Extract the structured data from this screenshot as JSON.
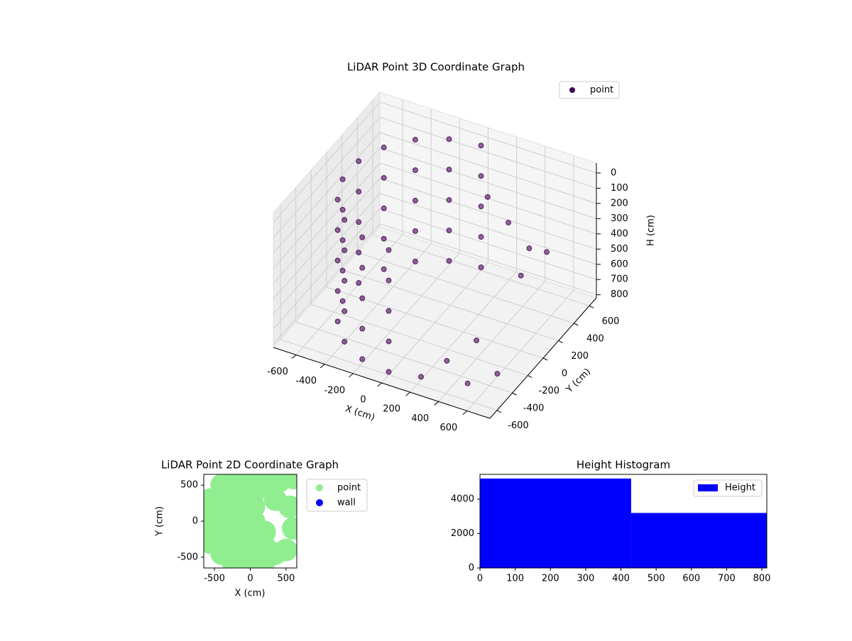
{
  "chart_data": [
    {
      "type": "scatter3d",
      "title": "LiDAR Point 3D Coordinate Graph",
      "x_label": "X (cm)",
      "y_label": "Y (cm)",
      "z_label": "H (cm)",
      "xlim": [
        -760,
        760
      ],
      "ylim": [
        -692,
        692
      ],
      "zlim": [
        820,
        -65
      ],
      "xticks": [
        -600,
        -400,
        -200,
        0,
        200,
        400,
        600
      ],
      "yticks": [
        -600,
        -400,
        -200,
        0,
        200,
        400,
        600
      ],
      "zticks": [
        0,
        100,
        200,
        300,
        400,
        500,
        600,
        700,
        800
      ],
      "legend": "upper right",
      "grid": true,
      "series": [
        {
          "name": "point",
          "color": "#440154",
          "x": [
            0,
            -205,
            -386,
            -520,
            -591,
            -591,
            -520,
            -386,
            -205,
            0,
            0,
            -205,
            -386,
            -520,
            -591,
            -591,
            -520,
            -386,
            -205,
            0,
            0,
            -205,
            -386,
            -520,
            -591,
            -591,
            -520,
            -386,
            -205,
            0,
            0,
            -205,
            -386,
            -520,
            -591,
            -591,
            -520,
            -386,
            -205,
            0,
            0,
            -205,
            -386,
            -520,
            -591,
            -591,
            -520,
            -386,
            -205,
            0,
            100,
            300,
            500,
            550,
            400,
            300,
            600,
            200,
            650,
            500
          ],
          "y": [
            600,
            564,
            460,
            300,
            104,
            -104,
            -300,
            -460,
            -564,
            -600,
            600,
            564,
            460,
            300,
            104,
            -104,
            -300,
            -460,
            -564,
            -600,
            600,
            564,
            460,
            300,
            104,
            -104,
            -300,
            -460,
            -564,
            -600,
            600,
            564,
            460,
            300,
            104,
            -104,
            -300,
            -460,
            -564,
            -600,
            600,
            564,
            460,
            300,
            104,
            -104,
            -300,
            -460,
            -564,
            -600,
            500,
            400,
            300,
            100,
            -200,
            -400,
            -300,
            -550,
            250,
            -500
          ],
          "z": [
            0,
            0,
            0,
            0,
            0,
            0,
            0,
            0,
            0,
            0,
            200,
            200,
            200,
            200,
            200,
            200,
            200,
            200,
            200,
            200,
            400,
            400,
            400,
            400,
            400,
            400,
            400,
            400,
            400,
            400,
            600,
            600,
            600,
            600,
            600,
            600,
            600,
            600,
            600,
            600,
            800,
            800,
            800,
            800,
            800,
            800,
            800,
            800,
            800,
            800,
            250,
            300,
            350,
            400,
            700,
            750,
            800,
            800,
            300,
            780
          ]
        }
      ]
    },
    {
      "type": "scatter",
      "title": "LiDAR Point 2D Coordinate Graph",
      "x_label": "X (cm)",
      "y_label": "Y (cm)",
      "xlim": [
        -650,
        650
      ],
      "ylim": [
        -650,
        650
      ],
      "xticks": [
        -500,
        0,
        500
      ],
      "yticks": [
        -500,
        0,
        500
      ],
      "legend": "outside right",
      "series": [
        {
          "name": "point",
          "color": "#90ee90",
          "x": [
            -550,
            -550,
            -550,
            -550,
            -400,
            -400,
            -400,
            -400,
            -400,
            -400,
            -250,
            -250,
            -250,
            -250,
            -250,
            -250,
            -250,
            -100,
            -100,
            -100,
            -100,
            -100,
            -100,
            -100,
            50,
            50,
            50,
            50,
            50,
            50,
            50,
            200,
            200,
            200,
            200,
            200,
            350,
            350,
            400,
            500,
            550,
            600,
            600
          ],
          "y": [
            -300,
            -100,
            100,
            300,
            -450,
            -250,
            -50,
            150,
            350,
            500,
            -550,
            -350,
            -150,
            50,
            250,
            450,
            600,
            -600,
            -400,
            -200,
            0,
            200,
            400,
            600,
            -600,
            -400,
            -200,
            0,
            200,
            400,
            620,
            -550,
            -350,
            -150,
            500,
            600,
            -450,
            300,
            550,
            -400,
            200,
            -100,
            600
          ]
        },
        {
          "name": "wall",
          "color": "#0000ff",
          "x": [],
          "y": []
        }
      ]
    },
    {
      "type": "hist",
      "title": "Height Histogram",
      "bins": [
        0,
        429,
        814
      ],
      "counts": [
        5200,
        3200
      ],
      "color": "#0000ff",
      "name": "Height",
      "xlim": [
        0,
        814
      ],
      "ylim": [
        0,
        5443
      ],
      "xticks": [
        0,
        100,
        200,
        300,
        400,
        500,
        600,
        700,
        800
      ],
      "yticks": [
        0,
        2000,
        4000
      ],
      "legend": "upper right"
    }
  ]
}
